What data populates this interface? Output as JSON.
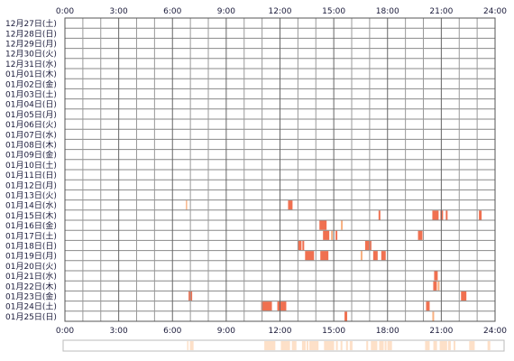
{
  "chart_data": {
    "type": "heatmap",
    "title": "",
    "xlabel": "",
    "ylabel": "",
    "x_range_hours": [
      0,
      24
    ],
    "x_tick_labels": [
      "0:00",
      "3:00",
      "6:00",
      "9:00",
      "12:00",
      "15:00",
      "18:00",
      "21:00",
      "24:00"
    ],
    "days": [
      "12月27日(土)",
      "12月28日(日)",
      "12月29日(月)",
      "12月30日(火)",
      "12月31日(水)",
      "01月01日(木)",
      "01月02日(金)",
      "01月03日(土)",
      "01月04日(日)",
      "01月05日(月)",
      "01月06日(火)",
      "01月07日(水)",
      "01月08日(木)",
      "01月09日(金)",
      "01月10日(土)",
      "01月11日(日)",
      "01月12日(月)",
      "01月13日(火)",
      "01月14日(水)",
      "01月15日(木)",
      "01月16日(金)",
      "01月17日(土)",
      "01月18日(日)",
      "01月19日(月)",
      "01月20日(火)",
      "01月21日(水)",
      "01月22日(木)",
      "01月23日(金)",
      "01月24日(土)",
      "01月25日(日)"
    ],
    "activity_color": "#f07050",
    "activity_light_color": "#f8b080",
    "summary_color": "#fde0c8",
    "grid": true,
    "activity": [
      {
        "day": "01月14日(水)",
        "start": 6.75,
        "end": 6.82,
        "level": "light"
      },
      {
        "day": "01月14日(水)",
        "start": 12.45,
        "end": 12.7,
        "level": "full"
      },
      {
        "day": "01月15日(木)",
        "start": 17.5,
        "end": 17.6,
        "level": "full"
      },
      {
        "day": "01月15日(木)",
        "start": 20.5,
        "end": 20.85,
        "level": "full"
      },
      {
        "day": "01月15日(木)",
        "start": 20.95,
        "end": 21.1,
        "level": "full"
      },
      {
        "day": "01月15日(木)",
        "start": 21.25,
        "end": 21.35,
        "level": "full"
      },
      {
        "day": "01月15日(木)",
        "start": 23.1,
        "end": 23.25,
        "level": "full"
      },
      {
        "day": "01月16日(金)",
        "start": 14.2,
        "end": 14.6,
        "level": "full"
      },
      {
        "day": "01月16日(金)",
        "start": 15.4,
        "end": 15.5,
        "level": "light"
      },
      {
        "day": "01月17日(土)",
        "start": 14.4,
        "end": 14.75,
        "level": "full"
      },
      {
        "day": "01月17日(土)",
        "start": 14.85,
        "end": 14.95,
        "level": "light"
      },
      {
        "day": "01月17日(土)",
        "start": 15.1,
        "end": 15.2,
        "level": "full"
      },
      {
        "day": "01月17日(土)",
        "start": 19.7,
        "end": 19.95,
        "level": "full"
      },
      {
        "day": "01月18日(日)",
        "start": 13.0,
        "end": 13.2,
        "level": "full"
      },
      {
        "day": "01月18日(日)",
        "start": 13.25,
        "end": 13.35,
        "level": "full"
      },
      {
        "day": "01月18日(日)",
        "start": 16.75,
        "end": 17.1,
        "level": "full"
      },
      {
        "day": "01月19日(月)",
        "start": 13.4,
        "end": 13.9,
        "level": "full"
      },
      {
        "day": "01月19日(月)",
        "start": 14.25,
        "end": 14.7,
        "level": "full"
      },
      {
        "day": "01月19日(月)",
        "start": 16.5,
        "end": 16.6,
        "level": "light"
      },
      {
        "day": "01月19日(月)",
        "start": 17.2,
        "end": 17.45,
        "level": "full"
      },
      {
        "day": "01月19日(月)",
        "start": 17.65,
        "end": 17.9,
        "level": "full"
      },
      {
        "day": "01月21日(水)",
        "start": 20.6,
        "end": 20.8,
        "level": "full"
      },
      {
        "day": "01月22日(木)",
        "start": 20.55,
        "end": 20.75,
        "level": "full"
      },
      {
        "day": "01月22日(木)",
        "start": 20.8,
        "end": 20.9,
        "level": "light"
      },
      {
        "day": "01月23日(金)",
        "start": 6.9,
        "end": 7.1,
        "level": "full"
      },
      {
        "day": "01月23日(金)",
        "start": 22.1,
        "end": 22.4,
        "level": "full"
      },
      {
        "day": "01月24日(土)",
        "start": 10.95,
        "end": 11.55,
        "level": "full"
      },
      {
        "day": "01月24日(土)",
        "start": 11.85,
        "end": 12.35,
        "level": "full"
      },
      {
        "day": "01月24日(土)",
        "start": 20.15,
        "end": 20.35,
        "level": "full"
      },
      {
        "day": "01月25日(日)",
        "start": 15.6,
        "end": 15.75,
        "level": "full"
      },
      {
        "day": "01月25日(日)",
        "start": 20.5,
        "end": 20.6,
        "level": "light"
      }
    ]
  }
}
